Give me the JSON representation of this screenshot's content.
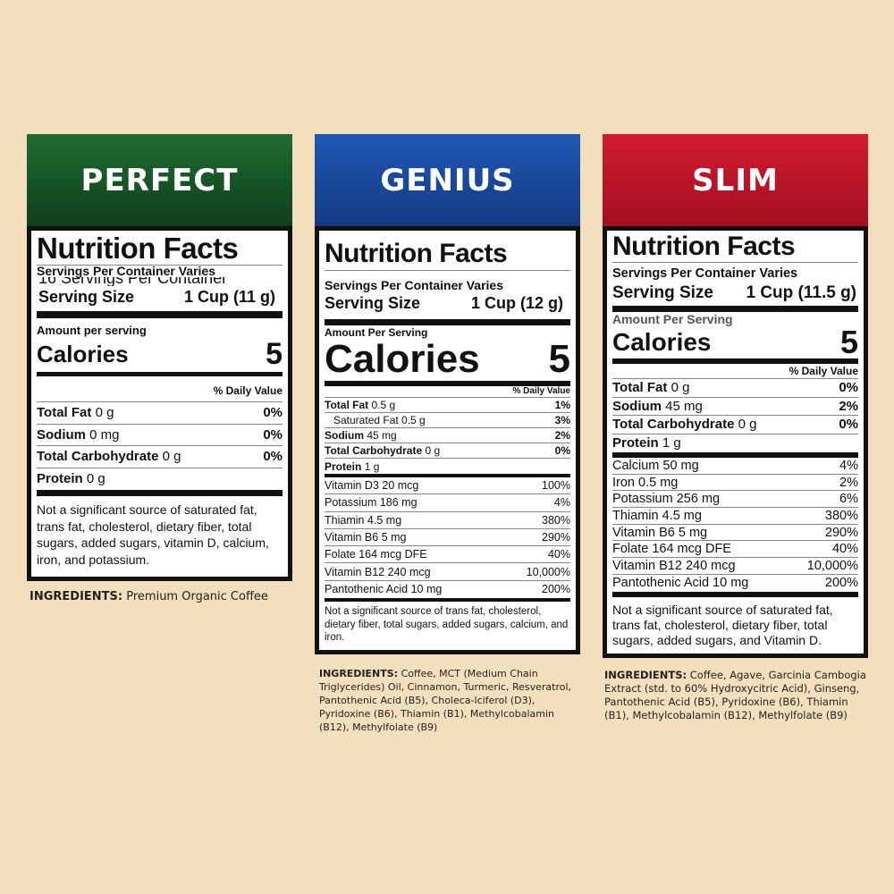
{
  "panels": [
    {
      "id": "perfect",
      "brand": "PERFECT",
      "header_color": "#1a5e2b",
      "nutrition": {
        "title": "Nutrition Facts",
        "servings": "Servings Per Container Varies",
        "servings_obscured": "16 Servings Per Container",
        "serving_size_label": "Serving Size",
        "serving_size_value": "1 Cup (11 g)",
        "amount_label": "Amount per serving",
        "calories_label": "Calories",
        "calories_value": "5",
        "dv_label": "% Daily Value",
        "rows": [
          {
            "name": "Total Fat",
            "amount": "0 g",
            "dv": "0%"
          },
          {
            "name": "Sodium",
            "amount": "0 mg",
            "dv": "0%"
          },
          {
            "name": "Total Carbohydrate",
            "amount": "0 g",
            "dv": "0%"
          },
          {
            "name": "Protein",
            "amount": "0 g",
            "dv": ""
          }
        ],
        "vitamins": [],
        "footnote": "Not a significant source of saturated fat, trans fat, cholesterol, dietary fiber, total sugars, added sugars, vitamin D, calcium, iron, and potassium."
      },
      "ingredients_label": "INGREDIENTS:",
      "ingredients": "Premium Organic Coffee"
    },
    {
      "id": "genius",
      "brand": "GENIUS",
      "header_color": "#1a4a9c",
      "nutrition": {
        "title": "Nutrition Facts",
        "servings": "Servings Per Container Varies",
        "serving_size_label": "Serving Size",
        "serving_size_value": "1 Cup (12 g)",
        "amount_label": "Amount Per Serving",
        "calories_label": "Calories",
        "calories_value": "5",
        "dv_label": "% Daily Value",
        "rows": [
          {
            "name": "Total Fat",
            "amount": "0.5 g",
            "dv": "1%"
          },
          {
            "name": "Saturated Fat 0.5 g",
            "amount": "",
            "dv": "3%",
            "indent": true
          },
          {
            "name": "Sodium",
            "amount": "45 mg",
            "dv": "2%"
          },
          {
            "name": "Total Carbohydrate",
            "amount": "0 g",
            "dv": "0%"
          },
          {
            "name": "Protein",
            "amount": "1 g",
            "dv": ""
          }
        ],
        "vitamins": [
          {
            "name": "Vitamin D3 20 mcg",
            "dv": "100%"
          },
          {
            "name": "Potassium 186 mg",
            "dv": "4%"
          },
          {
            "name": "Thiamin 4.5 mg",
            "dv": "380%"
          },
          {
            "name": "Vitamin B6 5 mg",
            "dv": "290%"
          },
          {
            "name": "Folate 164 mcg DFE",
            "dv": "40%"
          },
          {
            "name": "Vitamin B12 240 mcg",
            "dv": "10,000%"
          },
          {
            "name": "Pantothenic Acid 10 mg",
            "dv": "200%"
          }
        ],
        "footnote": "Not a significant source of trans fat, cholesterol, dietary fiber, total sugars, added sugars, calcium, and iron."
      },
      "ingredients_label": "INGREDIENTS:",
      "ingredients": "Coffee, MCT (Medium Chain Triglycerides) Oil, Cinnamon, Turmeric, Resveratrol, Pantothenic Acid (B5), Choleca-lciferol (D3), Pyridoxine (B6), Thiamin (B1), Methylcobalamin (B12), Methylfolate (B9)"
    },
    {
      "id": "slim",
      "brand": "SLIM",
      "header_color": "#c0152a",
      "nutrition": {
        "title": "Nutrition Facts",
        "servings": "Servings Per Container Varies",
        "serving_size_label": "Serving Size",
        "serving_size_value": "1 Cup (11.5 g)",
        "amount_label": "Amount Per Serving",
        "calories_label": "Calories",
        "calories_value": "5",
        "dv_label": "% Daily Value",
        "rows": [
          {
            "name": "Total Fat",
            "amount": "0 g",
            "dv": "0%"
          },
          {
            "name": "Sodium",
            "amount": "45 mg",
            "dv": "2%"
          },
          {
            "name": "Total Carbohydrate",
            "amount": "0 g",
            "dv": "0%"
          },
          {
            "name": "Protein",
            "amount": "1 g",
            "dv": ""
          }
        ],
        "vitamins": [
          {
            "name": "Calcium 50 mg",
            "dv": "4%"
          },
          {
            "name": "Iron 0.5 mg",
            "dv": "2%"
          },
          {
            "name": "Potassium 256 mg",
            "dv": "6%"
          },
          {
            "name": "Thiamin 4.5 mg",
            "dv": "380%"
          },
          {
            "name": "Vitamin B6 5 mg",
            "dv": "290%"
          },
          {
            "name": "Folate 164 mcg DFE",
            "dv": "40%"
          },
          {
            "name": "Vitamin B12 240 mcg",
            "dv": "10,000%"
          },
          {
            "name": "Pantothenic Acid 10 mg",
            "dv": "200%"
          }
        ],
        "footnote": "Not a significant source of saturated fat, trans fat, cholesterol, dietary fiber, total sugars, added sugars, and Vitamin D."
      },
      "ingredients_label": "INGREDIENTS:",
      "ingredients": "Coffee, Agave, Garcinia Cambogia Extract (std. to 60% Hydroxycitric Acid), Ginseng, Pantothenic Acid (B5), Pyridoxine (B6), Thiamin (B1), Methylcobalamin (B12), Methylfolate (B9)"
    }
  ]
}
